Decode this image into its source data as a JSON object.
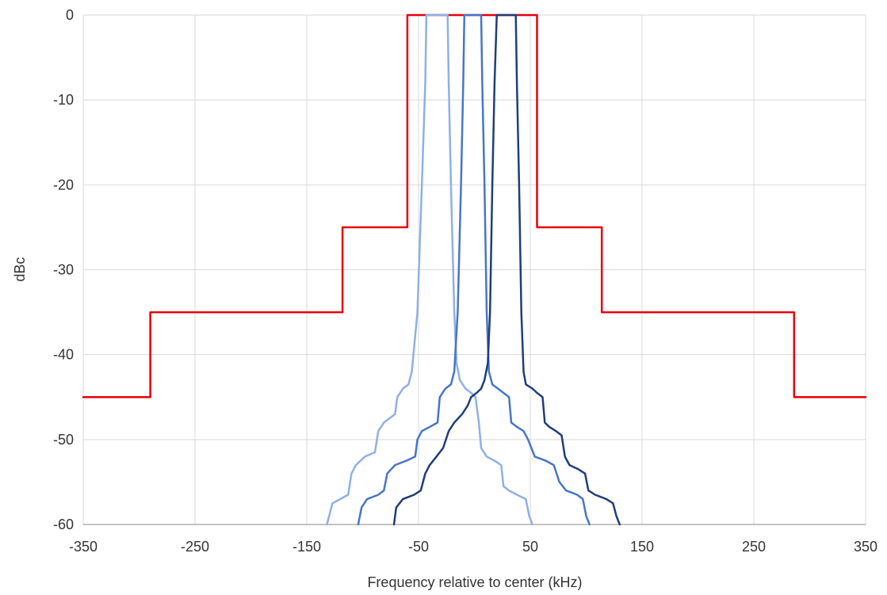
{
  "chart_data": {
    "type": "line",
    "title": "",
    "xlabel": "Frequency relative to center (kHz)",
    "ylabel": "dBc",
    "xlim": [
      -350,
      350
    ],
    "ylim": [
      -60,
      0
    ],
    "x_ticks": [
      -350,
      -250,
      -150,
      -50,
      50,
      150,
      250,
      350
    ],
    "y_ticks": [
      0,
      -10,
      -20,
      -30,
      -40,
      -50,
      -60
    ],
    "grid": true,
    "legend": "none",
    "series": [
      {
        "color": "#e8000b",
        "stroke_width": 2.5,
        "points": [
          [
            -350,
            -45
          ],
          [
            -290,
            -45
          ],
          [
            -290,
            -35
          ],
          [
            -118,
            -35
          ],
          [
            -118,
            -25
          ],
          [
            -60,
            -25
          ],
          [
            -60,
            0
          ],
          [
            56,
            0
          ],
          [
            56,
            -25
          ],
          [
            114,
            -25
          ],
          [
            114,
            -35
          ],
          [
            286,
            -35
          ],
          [
            286,
            -45
          ],
          [
            350,
            -45
          ]
        ]
      },
      {
        "color": "#8fb0e6",
        "stroke_width": 2.5,
        "points": [
          [
            -132,
            -60
          ],
          [
            -130,
            -59
          ],
          [
            -127,
            -57.5
          ],
          [
            -120,
            -57
          ],
          [
            -113,
            -56.5
          ],
          [
            -110,
            -54
          ],
          [
            -106,
            -53
          ],
          [
            -98,
            -52
          ],
          [
            -89,
            -51.5
          ],
          [
            -86,
            -49
          ],
          [
            -81,
            -48
          ],
          [
            -76,
            -47.5
          ],
          [
            -71,
            -47
          ],
          [
            -69,
            -45
          ],
          [
            -64,
            -44
          ],
          [
            -59,
            -43.5
          ],
          [
            -56,
            -42
          ],
          [
            -51,
            -35
          ],
          [
            -47,
            -20
          ],
          [
            -44,
            -8
          ],
          [
            -43,
            0
          ],
          [
            -24,
            0
          ],
          [
            -23,
            -8
          ],
          [
            -21,
            -20
          ],
          [
            -18,
            -35
          ],
          [
            -16,
            -41
          ],
          [
            -13,
            -43
          ],
          [
            -8,
            -44
          ],
          [
            -3,
            -44.5
          ],
          [
            1,
            -45
          ],
          [
            4,
            -48
          ],
          [
            6,
            -51
          ],
          [
            11,
            -52
          ],
          [
            18,
            -52.5
          ],
          [
            24,
            -53
          ],
          [
            26,
            -55.5
          ],
          [
            31,
            -56
          ],
          [
            38,
            -56.5
          ],
          [
            46,
            -57
          ],
          [
            49,
            -59
          ],
          [
            52,
            -60
          ]
        ]
      },
      {
        "color": "#4775c8",
        "stroke_width": 2.5,
        "points": [
          [
            -104,
            -60
          ],
          [
            -101,
            -58
          ],
          [
            -96,
            -57
          ],
          [
            -86,
            -56.5
          ],
          [
            -81,
            -56
          ],
          [
            -78,
            -54
          ],
          [
            -71,
            -53
          ],
          [
            -61,
            -52.5
          ],
          [
            -53,
            -52
          ],
          [
            -51,
            -50
          ],
          [
            -47,
            -49
          ],
          [
            -40,
            -48.5
          ],
          [
            -33,
            -48
          ],
          [
            -31,
            -45
          ],
          [
            -26,
            -44
          ],
          [
            -21,
            -43.5
          ],
          [
            -18,
            -42
          ],
          [
            -15,
            -35
          ],
          [
            -12,
            -20
          ],
          [
            -10,
            -8
          ],
          [
            -9,
            0
          ],
          [
            6,
            0
          ],
          [
            7,
            -8
          ],
          [
            9,
            -20
          ],
          [
            11,
            -35
          ],
          [
            13,
            -42
          ],
          [
            16,
            -43.5
          ],
          [
            21,
            -44
          ],
          [
            26,
            -44.5
          ],
          [
            31,
            -45
          ],
          [
            33,
            -48
          ],
          [
            38,
            -48.5
          ],
          [
            44,
            -49
          ],
          [
            48,
            -50
          ],
          [
            51,
            -51
          ],
          [
            54,
            -52
          ],
          [
            64,
            -52.5
          ],
          [
            71,
            -53
          ],
          [
            76,
            -55
          ],
          [
            82,
            -56
          ],
          [
            92,
            -56.5
          ],
          [
            97,
            -57
          ],
          [
            100,
            -59
          ],
          [
            103,
            -60
          ]
        ]
      },
      {
        "color": "#1f3e7a",
        "stroke_width": 2.5,
        "points": [
          [
            -72,
            -60
          ],
          [
            -70,
            -58
          ],
          [
            -64,
            -57
          ],
          [
            -54,
            -56.5
          ],
          [
            -48,
            -56
          ],
          [
            -44,
            -54
          ],
          [
            -40,
            -53
          ],
          [
            -34,
            -52
          ],
          [
            -28,
            -51
          ],
          [
            -23,
            -49
          ],
          [
            -18,
            -48
          ],
          [
            -11,
            -47
          ],
          [
            -6,
            -46
          ],
          [
            -3,
            -45
          ],
          [
            2,
            -44.5
          ],
          [
            6,
            -44
          ],
          [
            9,
            -43
          ],
          [
            12,
            -41
          ],
          [
            14,
            -35
          ],
          [
            16,
            -20
          ],
          [
            18,
            -8
          ],
          [
            20,
            0
          ],
          [
            37,
            0
          ],
          [
            38,
            -8
          ],
          [
            40,
            -20
          ],
          [
            42,
            -35
          ],
          [
            44,
            -42
          ],
          [
            46,
            -43.5
          ],
          [
            52,
            -44
          ],
          [
            56,
            -44.5
          ],
          [
            61,
            -45
          ],
          [
            63,
            -48
          ],
          [
            67,
            -48.5
          ],
          [
            73,
            -49
          ],
          [
            78,
            -49.5
          ],
          [
            81,
            -52
          ],
          [
            85,
            -53
          ],
          [
            93,
            -53.5
          ],
          [
            99,
            -54
          ],
          [
            102,
            -56
          ],
          [
            108,
            -56.5
          ],
          [
            118,
            -57
          ],
          [
            124,
            -57.5
          ],
          [
            127,
            -59
          ],
          [
            130,
            -60
          ]
        ]
      }
    ]
  }
}
